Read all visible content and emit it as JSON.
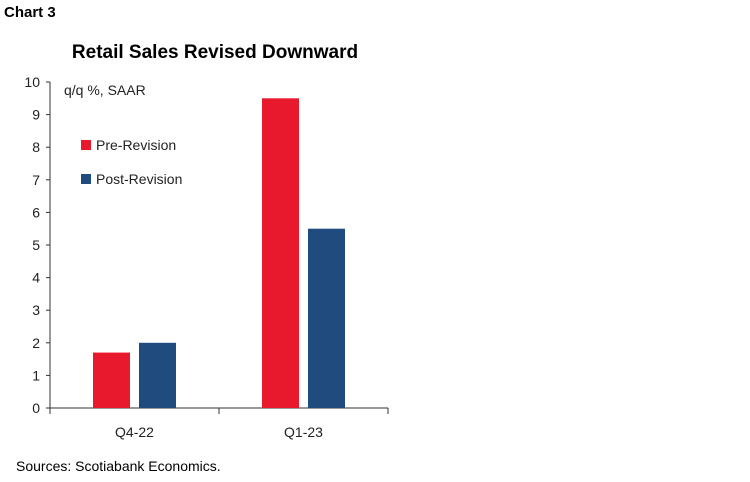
{
  "header": {
    "label": "Chart 3"
  },
  "footer": {
    "source": "Sources: Scotiabank Economics."
  },
  "chart_data": {
    "type": "bar",
    "title": "Retail Sales Revised Downward",
    "ylabel": "q/q %, SAAR",
    "xlabel": "",
    "categories": [
      "Q4-22",
      "Q1-23"
    ],
    "series": [
      {
        "name": "Pre-Revision",
        "color": "#e8192c",
        "values": [
          1.7,
          9.5
        ]
      },
      {
        "name": "Post-Revision",
        "color": "#1f4b7e",
        "values": [
          2.0,
          5.5
        ]
      }
    ],
    "ylim": [
      0,
      10
    ],
    "yticks": [
      0,
      1,
      2,
      3,
      4,
      5,
      6,
      7,
      8,
      9,
      10
    ],
    "grid": false,
    "legend_position": "top-left"
  }
}
